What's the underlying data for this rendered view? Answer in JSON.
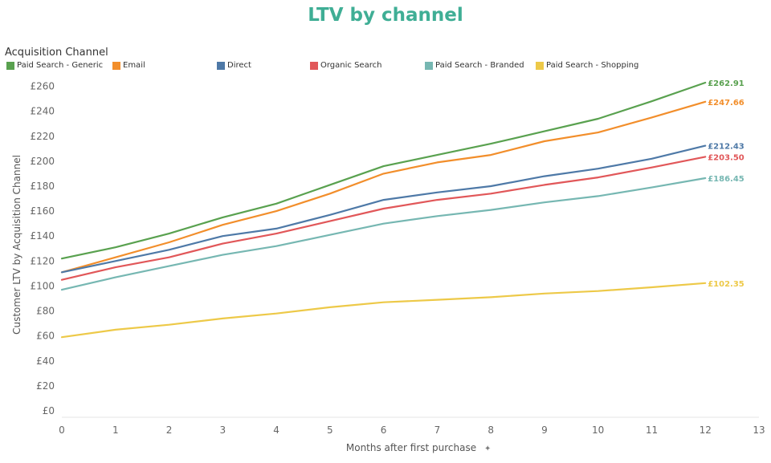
{
  "colors": {
    "title": "#3fae95"
  },
  "chart_data": {
    "type": "line",
    "title": "LTV by channel",
    "legend_title": "Acquisition Channel",
    "legend_position": "top-left",
    "xlabel": "Months after first purchase",
    "xlabel_icon": "pin-icon",
    "ylabel": "Customer LTV by Acquisition Channel",
    "xlim": [
      0,
      13
    ],
    "ylim": [
      0,
      270
    ],
    "x_ticks": [
      0,
      1,
      2,
      3,
      4,
      5,
      6,
      7,
      8,
      9,
      10,
      11,
      12,
      13
    ],
    "y_ticks": [
      {
        "value": 0,
        "label": "£0"
      },
      {
        "value": 20,
        "label": "£20"
      },
      {
        "value": 40,
        "label": "£40"
      },
      {
        "value": 60,
        "label": "£60"
      },
      {
        "value": 80,
        "label": "£80"
      },
      {
        "value": 100,
        "label": "£100"
      },
      {
        "value": 120,
        "label": "£120"
      },
      {
        "value": 140,
        "label": "£140"
      },
      {
        "value": 160,
        "label": "£160"
      },
      {
        "value": 180,
        "label": "£180"
      },
      {
        "value": 200,
        "label": "£200"
      },
      {
        "value": 220,
        "label": "£220"
      },
      {
        "value": 240,
        "label": "£240"
      },
      {
        "value": 260,
        "label": "£260"
      }
    ],
    "x": [
      0,
      1,
      2,
      3,
      4,
      5,
      6,
      7,
      8,
      9,
      10,
      11,
      12
    ],
    "series": [
      {
        "name": "Paid Search - Generic",
        "color": "#59a14f",
        "values": [
          122,
          131,
          142,
          155,
          166,
          181,
          196,
          205,
          214,
          224,
          234,
          248,
          262.91
        ],
        "end_label": "£262.91"
      },
      {
        "name": "Email",
        "color": "#f28e2b",
        "values": [
          111,
          123,
          135,
          149,
          160,
          174,
          190,
          199,
          205,
          216,
          223,
          235,
          247.66
        ],
        "end_label": "£247.66"
      },
      {
        "name": "Direct",
        "color": "#4e79a7",
        "values": [
          111,
          120,
          129,
          140,
          146,
          157,
          169,
          175,
          180,
          188,
          194,
          202,
          212.43
        ],
        "end_label": "£212.43"
      },
      {
        "name": "Organic Search",
        "color": "#e15759",
        "values": [
          105,
          115,
          123,
          134,
          142,
          152,
          162,
          169,
          174,
          181,
          187,
          195,
          203.5
        ],
        "end_label": "£203.50"
      },
      {
        "name": "Paid Search - Branded",
        "color": "#76b7b2",
        "values": [
          97,
          107,
          116,
          125,
          132,
          141,
          150,
          156,
          161,
          167,
          172,
          179,
          186.45
        ],
        "end_label": "£186.45"
      },
      {
        "name": "Paid Search - Shopping",
        "color": "#edc948",
        "values": [
          59,
          65,
          69,
          74,
          78,
          83,
          87,
          89,
          91,
          94,
          96,
          99,
          102.35
        ],
        "end_label": "£102.35"
      }
    ]
  }
}
